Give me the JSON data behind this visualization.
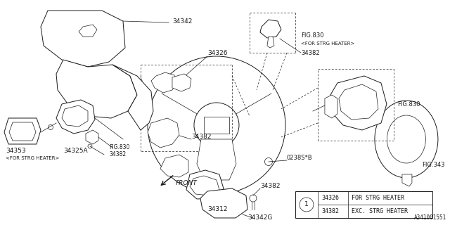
{
  "bg_color": "#ffffff",
  "line_color": "#1a1a1a",
  "fig_id": "A341001551",
  "legend_rows": [
    [
      "34326",
      "FOR STRG HEATER"
    ],
    [
      "34382",
      "EXC. STRG HEATER"
    ]
  ]
}
